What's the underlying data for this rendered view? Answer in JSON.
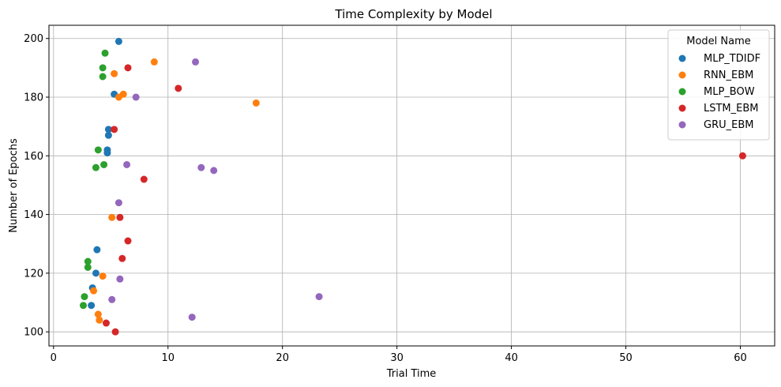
{
  "chart_data": {
    "type": "scatter",
    "title": "Time Complexity by Model",
    "xlabel": "Trial Time",
    "ylabel": "Number of Epochs",
    "xlim": [
      -0.4,
      63
    ],
    "ylim": [
      95.2,
      204.5
    ],
    "xticks": [
      0,
      10,
      20,
      30,
      40,
      50,
      60
    ],
    "yticks": [
      100,
      120,
      140,
      160,
      180,
      200
    ],
    "grid": true,
    "legend": {
      "title": "Model Name",
      "position": "top-right"
    },
    "series": [
      {
        "name": "MLP_TDIDF",
        "color": "#1f77b4",
        "points": [
          [
            5.7,
            199
          ],
          [
            5.3,
            181
          ],
          [
            4.8,
            169
          ],
          [
            4.8,
            167
          ],
          [
            4.7,
            162
          ],
          [
            4.7,
            161
          ],
          [
            3.8,
            128
          ],
          [
            3.7,
            120
          ],
          [
            3.4,
            115
          ],
          [
            3.3,
            109
          ]
        ]
      },
      {
        "name": "RNN_EBM",
        "color": "#ff7f0e",
        "points": [
          [
            8.8,
            192
          ],
          [
            5.3,
            188
          ],
          [
            6.1,
            181
          ],
          [
            5.7,
            180
          ],
          [
            17.7,
            178
          ],
          [
            5.1,
            139
          ],
          [
            4.3,
            119
          ],
          [
            3.5,
            114
          ],
          [
            3.9,
            106
          ],
          [
            4.0,
            104
          ]
        ]
      },
      {
        "name": "MLP_BOW",
        "color": "#2ca02c",
        "points": [
          [
            4.5,
            195
          ],
          [
            4.3,
            190
          ],
          [
            4.3,
            187
          ],
          [
            3.9,
            162
          ],
          [
            4.4,
            157
          ],
          [
            3.7,
            156
          ],
          [
            3.0,
            124
          ],
          [
            3.0,
            122
          ],
          [
            2.7,
            112
          ],
          [
            2.6,
            109
          ]
        ]
      },
      {
        "name": "LSTM_EBM",
        "color": "#d62728",
        "points": [
          [
            6.5,
            190
          ],
          [
            10.9,
            183
          ],
          [
            5.3,
            169
          ],
          [
            60.2,
            160
          ],
          [
            7.9,
            152
          ],
          [
            5.8,
            139
          ],
          [
            6.5,
            131
          ],
          [
            6.0,
            125
          ],
          [
            4.6,
            103
          ],
          [
            5.4,
            100
          ]
        ]
      },
      {
        "name": "GRU_EBM",
        "color": "#9467bd",
        "points": [
          [
            12.4,
            192
          ],
          [
            7.2,
            180
          ],
          [
            6.4,
            157
          ],
          [
            12.9,
            156
          ],
          [
            14.0,
            155
          ],
          [
            5.7,
            144
          ],
          [
            5.8,
            118
          ],
          [
            5.1,
            111
          ],
          [
            23.2,
            112
          ],
          [
            12.1,
            105
          ]
        ]
      }
    ]
  }
}
